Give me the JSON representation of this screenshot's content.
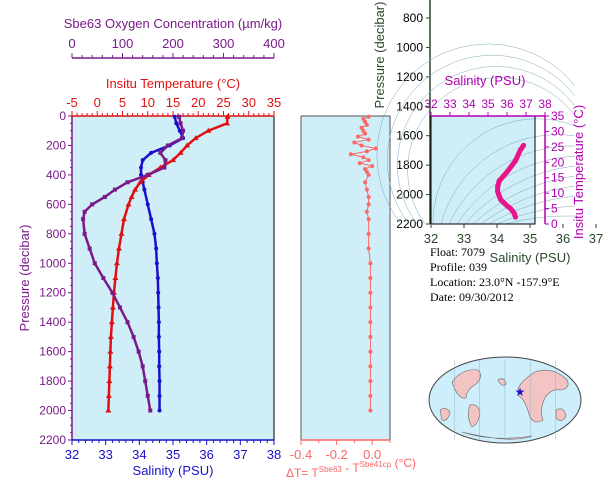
{
  "colors": {
    "salinity": "#1a10cc",
    "temperature": "#e01010",
    "oxygen": "#7a1a8a",
    "delta": "#ff6666",
    "panel_bg": "#d0eef8",
    "pressure_axis": "#7a1a8a",
    "ts": "#e8148a",
    "ts_axis": "#b000b0",
    "pressure2_axis": "#2a4a2a"
  },
  "info": {
    "float": "Float:  7079",
    "profile": "Profile:  039",
    "location": "Location:  23.0°N  -157.9°E",
    "date": "Date:  09/30/2012"
  },
  "chart_data": [
    {
      "type": "line",
      "name": "main-profile",
      "ylabel": "Pressure (decibar)",
      "ylim": [
        2200,
        0
      ],
      "yticks": [
        "0",
        "200",
        "400",
        "600",
        "800",
        "1000",
        "1200",
        "1400",
        "1600",
        "1800",
        "2000",
        "2200"
      ],
      "axes": {
        "oxygen": {
          "label": "Sbe63 Oxygen Concentration (µm/kg)",
          "lim": [
            0,
            400
          ],
          "ticks": [
            "0",
            "100",
            "200",
            "300",
            "400"
          ]
        },
        "temperature": {
          "label": "Insitu Temperature (°C)",
          "lim": [
            -5,
            35
          ],
          "ticks": [
            "-5",
            "0",
            "5",
            "10",
            "15",
            "20",
            "25",
            "30",
            "35"
          ]
        },
        "salinity": {
          "label": "Salinity (PSU)",
          "lim": [
            32,
            38
          ],
          "ticks": [
            "32",
            "33",
            "34",
            "35",
            "36",
            "37",
            "38"
          ]
        }
      },
      "series": [
        {
          "variable": "salinity",
          "pressure": [
            5,
            50,
            100,
            150,
            200,
            250,
            300,
            350,
            400,
            450,
            500,
            600,
            700,
            800,
            900,
            1000,
            1100,
            1200,
            1300,
            1400,
            1500,
            1600,
            1700,
            1800,
            1900,
            2000
          ],
          "values": [
            35.05,
            35.1,
            35.2,
            35.3,
            34.9,
            34.35,
            34.1,
            34.05,
            34.05,
            34.1,
            34.15,
            34.25,
            34.35,
            34.45,
            34.5,
            34.52,
            34.55,
            34.56,
            34.57,
            34.58,
            34.58,
            34.59,
            34.59,
            34.6,
            34.6,
            34.6
          ]
        },
        {
          "variable": "temperature",
          "pressure": [
            5,
            50,
            100,
            150,
            200,
            250,
            300,
            350,
            400,
            450,
            500,
            550,
            600,
            700,
            800,
            900,
            1000,
            1100,
            1200,
            1300,
            1400,
            1500,
            1600,
            1700,
            1800,
            1900,
            2000
          ],
          "values": [
            25.8,
            25.7,
            22.0,
            19.5,
            17.8,
            16.5,
            15.0,
            12.5,
            10.2,
            8.5,
            7.5,
            6.8,
            6.2,
            5.3,
            4.8,
            4.3,
            3.9,
            3.6,
            3.3,
            3.1,
            2.9,
            2.7,
            2.6,
            2.5,
            2.4,
            2.3,
            2.2
          ]
        },
        {
          "variable": "oxygen",
          "pressure": [
            5,
            50,
            100,
            150,
            200,
            250,
            300,
            350,
            400,
            450,
            500,
            550,
            600,
            650,
            700,
            800,
            900,
            1000,
            1100,
            1200,
            1300,
            1400,
            1500,
            1600,
            1700,
            1800,
            1900,
            2000
          ],
          "values": [
            212,
            215,
            220,
            218,
            190,
            175,
            185,
            183,
            150,
            110,
            85,
            65,
            40,
            25,
            22,
            25,
            35,
            45,
            62,
            80,
            95,
            110,
            122,
            132,
            140,
            145,
            150,
            155
          ]
        }
      ]
    },
    {
      "type": "line",
      "name": "delta-t",
      "xlabel": "ΔT= T^Sbe63 - T^Sbe41cp (°C)",
      "xlim": [
        -0.4,
        0.1
      ],
      "xticks": [
        "-0.4",
        "-0.2",
        "0.0"
      ],
      "ylim": [
        2200,
        0
      ],
      "series": [
        {
          "variable": "delta",
          "pressure": [
            5,
            20,
            40,
            60,
            80,
            100,
            120,
            140,
            160,
            180,
            200,
            220,
            240,
            260,
            280,
            300,
            320,
            340,
            360,
            380,
            400,
            450,
            500,
            550,
            600,
            650,
            700,
            800,
            900,
            1000,
            1100,
            1200,
            1300,
            1400,
            1500,
            1600,
            1700,
            1800,
            1900,
            2000
          ],
          "values": [
            -0.02,
            -0.05,
            -0.04,
            -0.03,
            -0.06,
            -0.05,
            -0.04,
            -0.08,
            -0.02,
            -0.1,
            -0.06,
            0.02,
            -0.03,
            -0.12,
            -0.05,
            -0.02,
            -0.07,
            0.0,
            -0.04,
            -0.03,
            -0.02,
            -0.04,
            -0.03,
            -0.02,
            -0.02,
            -0.03,
            -0.02,
            -0.02,
            -0.02,
            -0.01,
            -0.01,
            -0.01,
            -0.01,
            -0.01,
            -0.01,
            -0.01,
            -0.01,
            -0.01,
            -0.01,
            -0.01
          ]
        }
      ]
    },
    {
      "type": "scatter",
      "name": "ts-diagram",
      "xlabel": "Salinity (PSU)",
      "ylabel": "Insitu Temperature (°C)",
      "xlim_top": [
        32,
        38
      ],
      "xticks_top": [
        "32",
        "33",
        "34",
        "35",
        "36",
        "37",
        "38"
      ],
      "xlim": [
        32,
        37
      ],
      "xticks": [
        "32",
        "33",
        "34",
        "35",
        "36",
        "37"
      ],
      "ylim": [
        0,
        35
      ],
      "yticks": [
        "0",
        "5",
        "10",
        "15",
        "20",
        "25",
        "30",
        "35"
      ],
      "title": "Salinity (PSU)",
      "pressure_axis": {
        "label": "Pressure (decibar)",
        "ticks": [
          "800",
          "1000",
          "1200",
          "1400",
          "1600",
          "1800",
          "2000",
          "2200"
        ]
      },
      "series": [
        {
          "salinity": [
            34.6,
            34.58,
            34.56,
            34.5,
            34.45,
            34.35,
            34.25,
            34.15,
            34.1,
            34.05,
            34.05,
            34.1,
            34.35,
            34.6,
            34.75,
            34.85
          ],
          "temperature": [
            2.2,
            2.8,
            3.5,
            4.3,
            5.0,
            5.8,
            6.8,
            7.8,
            9.0,
            10.5,
            12.0,
            14.0,
            17.0,
            20.5,
            24.0,
            25.5
          ]
        }
      ]
    }
  ]
}
